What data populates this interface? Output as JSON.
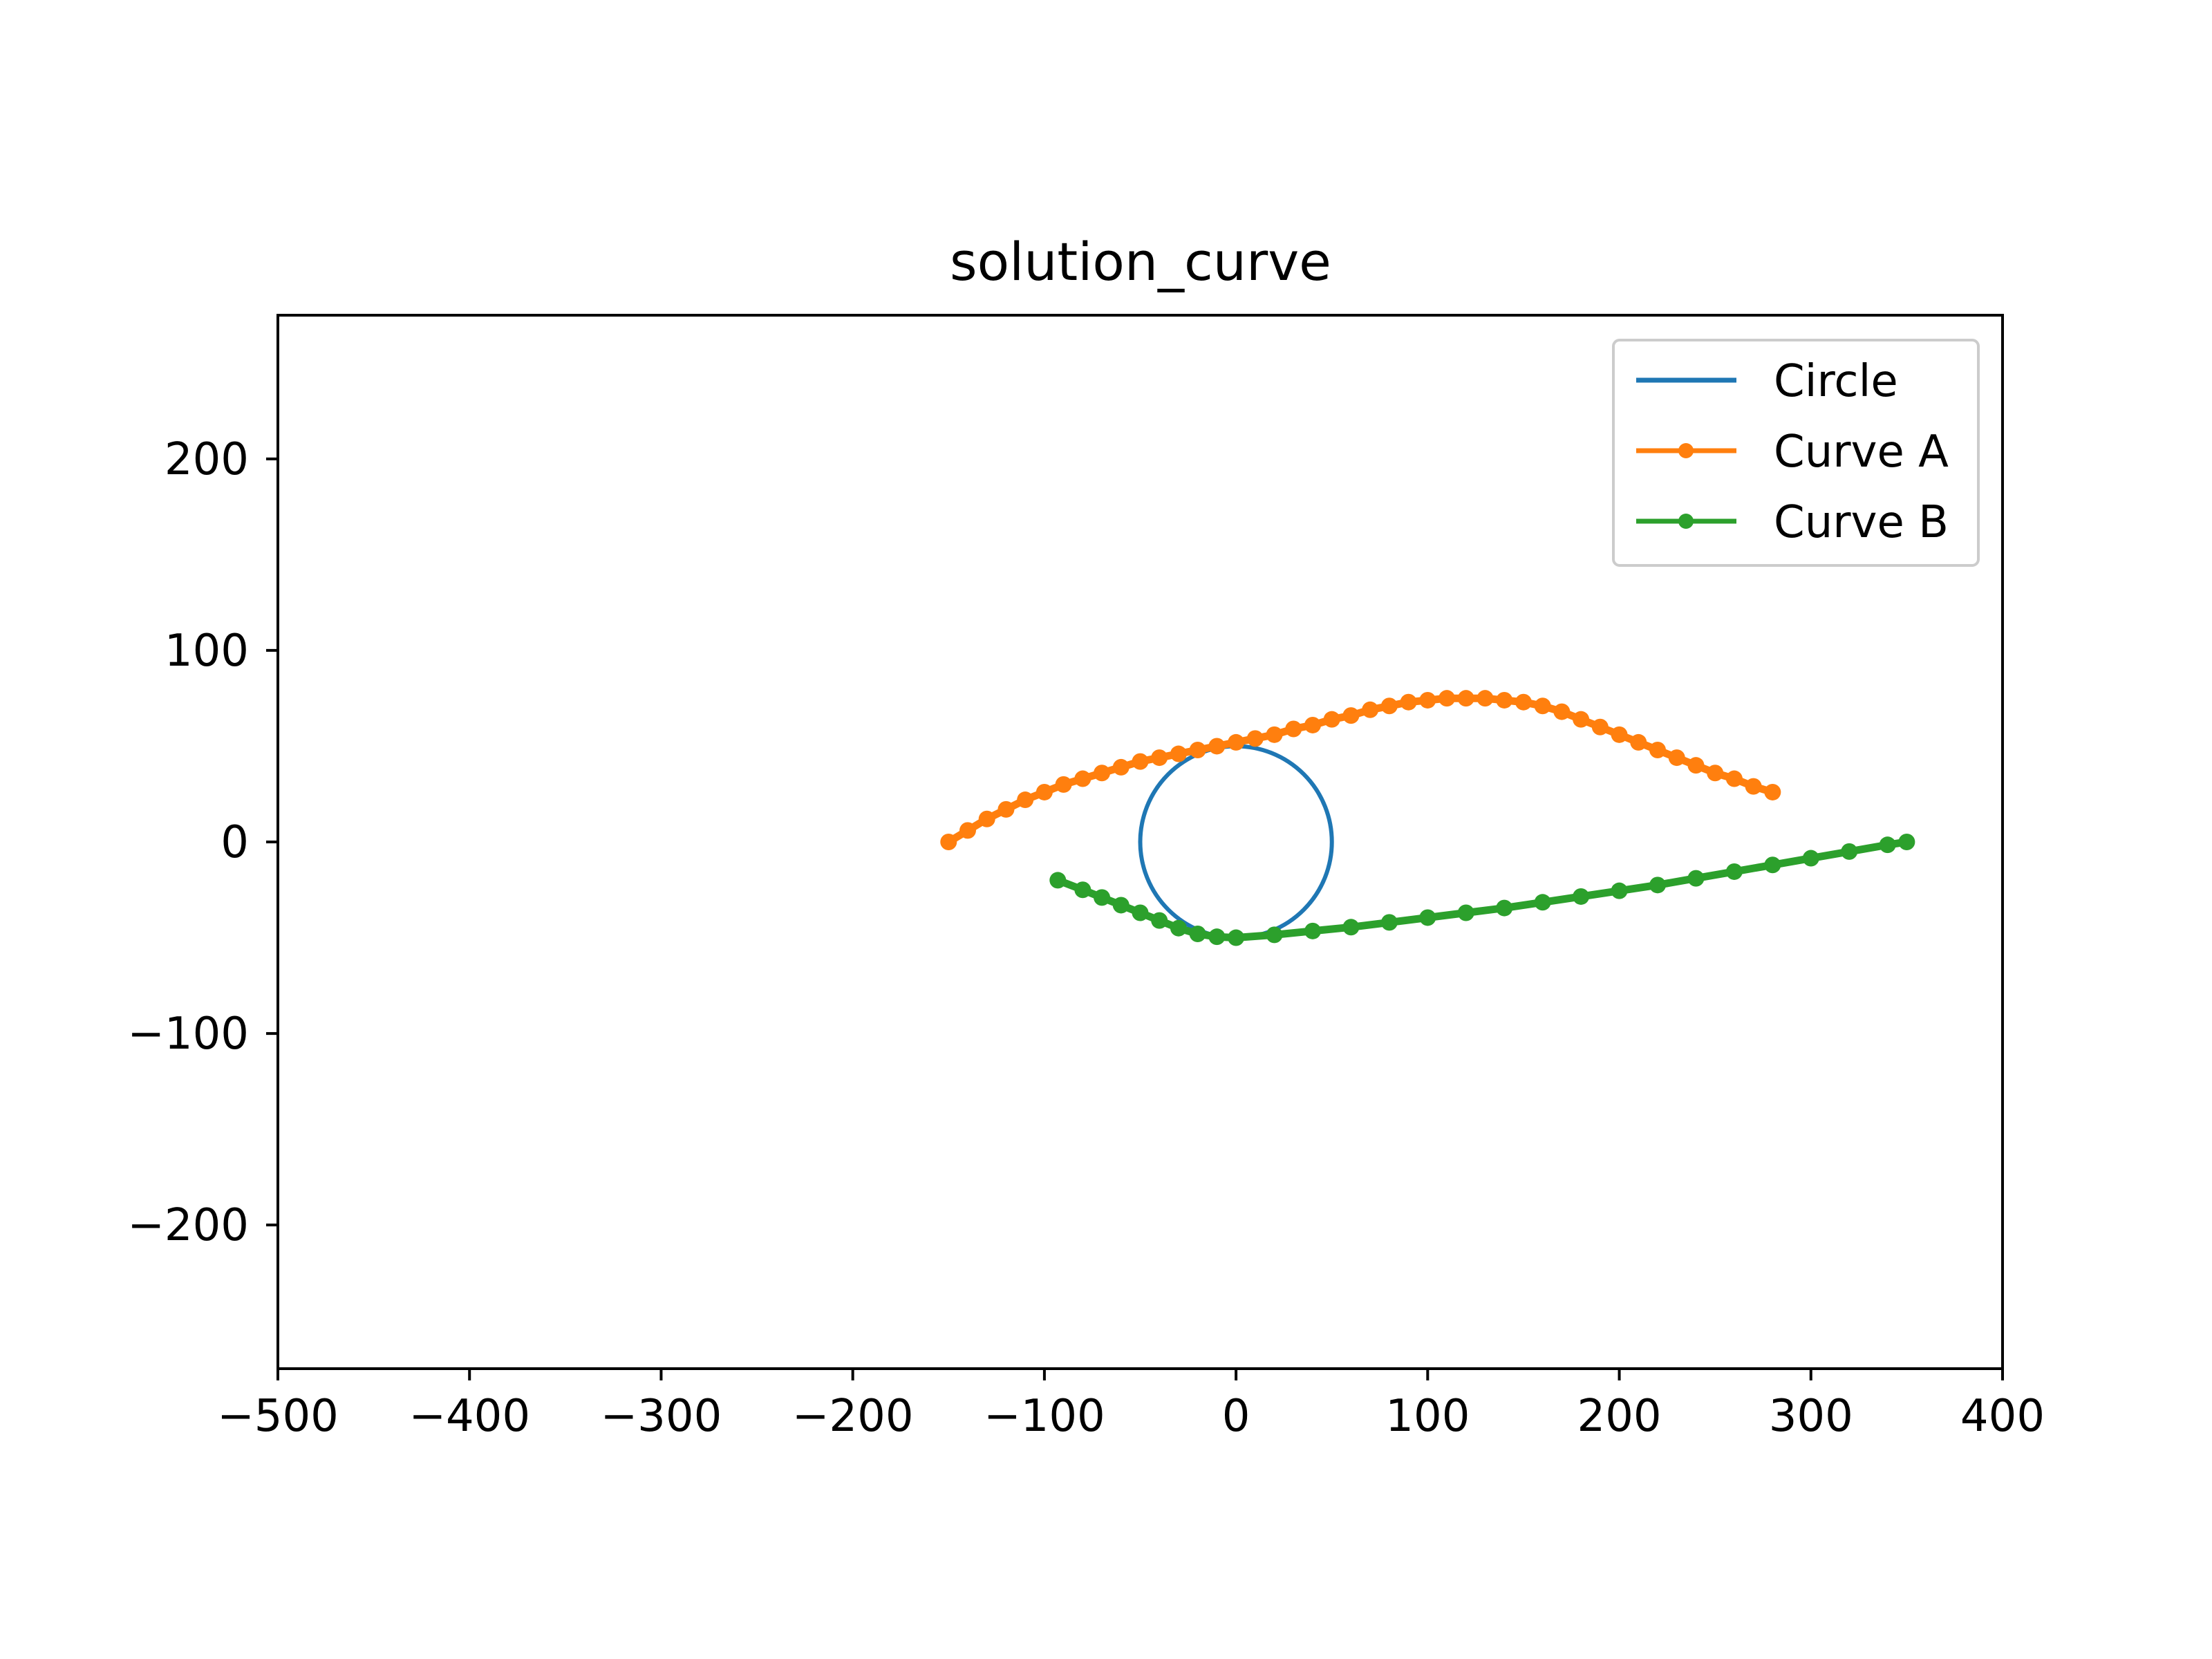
{
  "chart_data": {
    "type": "line",
    "title": "solution_curve",
    "xlabel": "",
    "ylabel": "",
    "xlim": [
      -500,
      400
    ],
    "ylim": [
      -275,
      275
    ],
    "x_ticks": [
      -500,
      -400,
      -300,
      -200,
      -100,
      0,
      100,
      200,
      300,
      400
    ],
    "y_ticks": [
      -200,
      -100,
      0,
      100,
      200
    ],
    "grid": false,
    "legend_position": "top-right",
    "series": [
      {
        "name": "Circle",
        "color": "#1f77b4",
        "marker": "none",
        "kind": "circle",
        "center": [
          0,
          0
        ],
        "radius": 50
      },
      {
        "name": "Curve A",
        "color": "#ff7f0e",
        "marker": "dot",
        "x": [
          -150,
          -140,
          -130,
          -120,
          -110,
          -100,
          -90,
          -80,
          -70,
          -60,
          -50,
          -40,
          -30,
          -20,
          -10,
          0,
          10,
          20,
          30,
          40,
          50,
          60,
          70,
          80,
          90,
          100,
          110,
          120,
          130,
          140,
          150,
          160,
          170,
          180,
          190,
          200,
          210,
          220,
          230,
          240,
          250,
          260,
          270,
          280
        ],
        "y": [
          0,
          6,
          12,
          17,
          22,
          26,
          30,
          33,
          36,
          39,
          42,
          44,
          46,
          48,
          50,
          52,
          54,
          56,
          59,
          61,
          64,
          66,
          69,
          71,
          73,
          74,
          75,
          75,
          75,
          74,
          73,
          71,
          68,
          64,
          60,
          56,
          52,
          48,
          44,
          40,
          36,
          33,
          29,
          26
        ]
      },
      {
        "name": "Curve B",
        "color": "#2ca02c",
        "marker": "dot",
        "x": [
          -93,
          -80,
          -70,
          -60,
          -50,
          -40,
          -30,
          -20,
          -10,
          0,
          20,
          40,
          60,
          80,
          100,
          120,
          140,
          160,
          180,
          200,
          220,
          240,
          260,
          280,
          300,
          320,
          340,
          350
        ],
        "y": [
          -20,
          -25,
          -29,
          -33,
          -37,
          -41,
          -45,
          -48,
          -49.5,
          -50,
          -48.5,
          -46.5,
          -44.5,
          -42,
          -39.5,
          -37,
          -34.5,
          -31.5,
          -28.5,
          -25.5,
          -22.5,
          -19,
          -15.5,
          -12,
          -8.5,
          -5,
          -1.5,
          0
        ]
      }
    ]
  }
}
